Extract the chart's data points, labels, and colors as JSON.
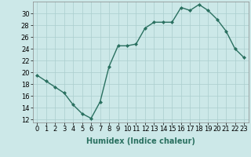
{
  "x": [
    0,
    1,
    2,
    3,
    4,
    5,
    6,
    7,
    8,
    9,
    10,
    11,
    12,
    13,
    14,
    15,
    16,
    17,
    18,
    19,
    20,
    21,
    22,
    23
  ],
  "y": [
    19.5,
    18.5,
    17.5,
    16.5,
    14.5,
    13.0,
    12.2,
    15.0,
    21.0,
    24.5,
    24.5,
    24.8,
    27.5,
    28.5,
    28.5,
    28.5,
    31.0,
    30.5,
    31.5,
    30.5,
    29.0,
    27.0,
    24.0,
    22.5
  ],
  "line_color": "#2a7060",
  "marker": "D",
  "marker_size": 2.0,
  "bg_color": "#cce8e8",
  "grid_color": "#aacece",
  "xlabel": "Humidex (Indice chaleur)",
  "xlim": [
    -0.5,
    23.5
  ],
  "ylim": [
    11.5,
    32
  ],
  "yticks": [
    12,
    14,
    16,
    18,
    20,
    22,
    24,
    26,
    28,
    30
  ],
  "xticks": [
    0,
    1,
    2,
    3,
    4,
    5,
    6,
    7,
    8,
    9,
    10,
    11,
    12,
    13,
    14,
    15,
    16,
    17,
    18,
    19,
    20,
    21,
    22,
    23
  ],
  "xlabel_fontsize": 7.0,
  "tick_fontsize": 6.0,
  "line_width": 1.0
}
